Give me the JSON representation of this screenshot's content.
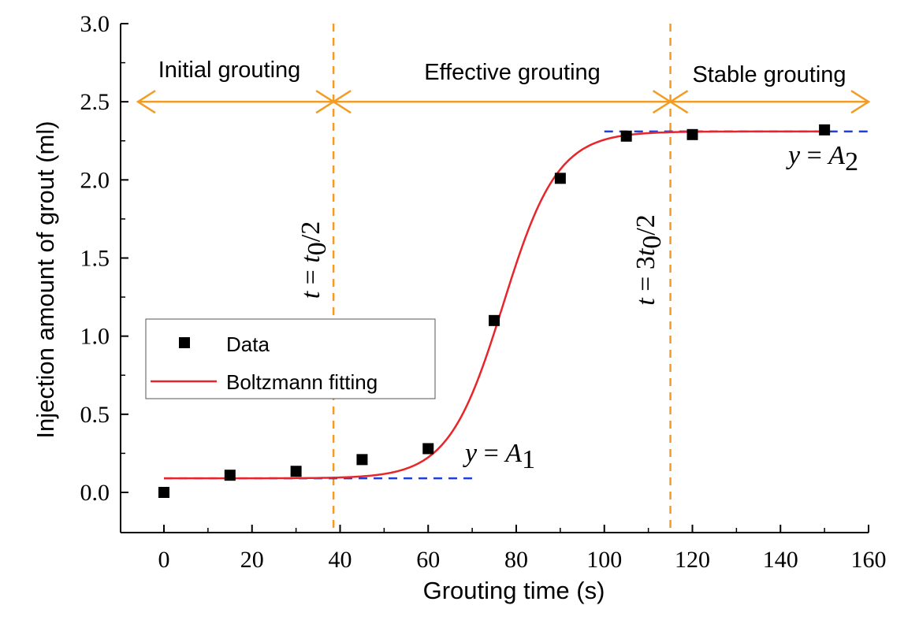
{
  "chart_data": {
    "type": "scatter",
    "xlabel": "Grouting time (s)",
    "ylabel": "Injection amount of grout (ml)",
    "xlim": [
      -10,
      160
    ],
    "ylim": [
      -0.25,
      3.0
    ],
    "xticks": [
      "0",
      "20",
      "40",
      "60",
      "80",
      "100",
      "120",
      "140",
      "160"
    ],
    "yticks": [
      "0.0",
      "0.5",
      "1.0",
      "1.5",
      "2.0",
      "2.5",
      "3.0"
    ],
    "series": [
      {
        "name": "Data",
        "marker": "square",
        "color": "#000000",
        "x": [
          0,
          15,
          30,
          45,
          60,
          75,
          90,
          105,
          120,
          150
        ],
        "y": [
          0.0,
          0.11,
          0.135,
          0.21,
          0.28,
          1.1,
          2.01,
          2.28,
          2.29,
          2.32
        ]
      },
      {
        "name": "Boltzmann fitting",
        "kind": "line",
        "color": "#e8252a",
        "model": "boltzmann",
        "A1": 0.09,
        "A2": 2.31,
        "x0": 77,
        "dx": 6.2,
        "x_range": [
          0,
          150
        ]
      }
    ],
    "reference_lines": [
      {
        "orientation": "vertical",
        "x": 38.5,
        "color": "#f39c23",
        "label": "t = t0/2"
      },
      {
        "orientation": "vertical",
        "x": 115,
        "color": "#f39c23",
        "label": "t = 3t0/2"
      },
      {
        "orientation": "horizontal",
        "y": 0.09,
        "x_range": [
          0,
          70
        ],
        "color": "#1f3fd6",
        "label": "y = A1"
      },
      {
        "orientation": "horizontal",
        "y": 2.31,
        "x_range": [
          100,
          160
        ],
        "color": "#1f3fd6",
        "label": "y = A2"
      }
    ],
    "regions": [
      {
        "label": "Initial grouting",
        "x_range": [
          -10,
          38.5
        ]
      },
      {
        "label": "Effective grouting",
        "x_range": [
          38.5,
          115
        ]
      },
      {
        "label": "Stable grouting",
        "x_range": [
          115,
          160
        ]
      }
    ],
    "arrow_y": 2.5,
    "legend": {
      "placement": "middle-left",
      "entries": [
        "Data",
        "Boltzmann fitting"
      ]
    },
    "colors": {
      "region_arrow": "#f39c23",
      "fit": "#e8252a",
      "asymptote": "#1f3fd6",
      "data": "#000000"
    }
  }
}
